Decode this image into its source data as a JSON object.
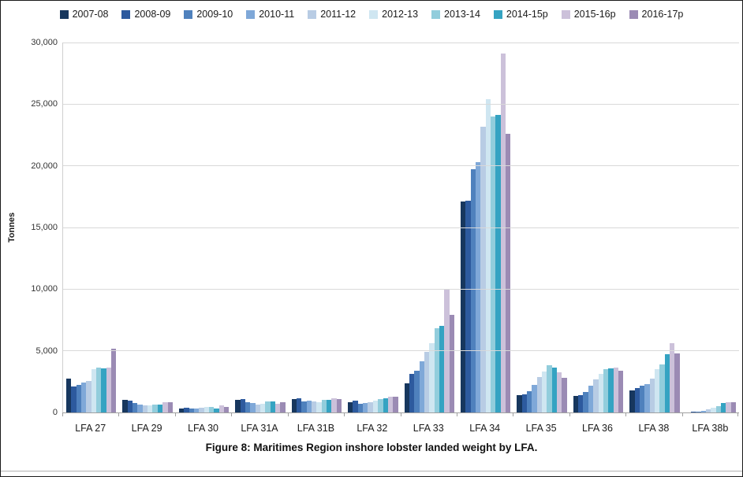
{
  "caption": "Figure 8: Maritimes Region inshore lobster landed weight by LFA.",
  "chart_data": {
    "type": "bar",
    "title": "",
    "xlabel": "",
    "ylabel": "Tonnes",
    "ylim": [
      0,
      30000
    ],
    "yticks": [
      0,
      5000,
      10000,
      15000,
      20000,
      25000,
      30000
    ],
    "ytick_labels": [
      "0",
      "5,000",
      "10,000",
      "15,000",
      "20,000",
      "25,000",
      "30,000"
    ],
    "grid": "horizontal",
    "legend_position": "top",
    "categories": [
      "LFA 27",
      "LFA 29",
      "LFA 30",
      "LFA 31A",
      "LFA 31B",
      "LFA 32",
      "LFA 33",
      "LFA 34",
      "LFA 35",
      "LFA 36",
      "LFA 38",
      "LFA 38b"
    ],
    "series": [
      {
        "name": "2007-08",
        "color": "#17375E",
        "values": [
          2750,
          1000,
          350,
          1000,
          1070,
          830,
          2350,
          17100,
          1400,
          1350,
          1800,
          20
        ]
      },
      {
        "name": "2008-09",
        "color": "#2D5A9E",
        "values": [
          2100,
          950,
          400,
          1100,
          1170,
          940,
          3150,
          17150,
          1450,
          1400,
          2000,
          40
        ]
      },
      {
        "name": "2009-10",
        "color": "#4F81BD",
        "values": [
          2250,
          750,
          300,
          830,
          890,
          720,
          3400,
          19700,
          1750,
          1650,
          2150,
          70
        ]
      },
      {
        "name": "2010-11",
        "color": "#7FA8D8",
        "values": [
          2450,
          650,
          350,
          770,
          980,
          770,
          4150,
          20300,
          2250,
          2150,
          2300,
          150
        ]
      },
      {
        "name": "2011-12",
        "color": "#B8CCE4",
        "values": [
          2550,
          600,
          400,
          620,
          890,
          830,
          4900,
          23200,
          2850,
          2650,
          2750,
          230
        ]
      },
      {
        "name": "2012-13",
        "color": "#CFE6F1",
        "values": [
          3500,
          550,
          450,
          680,
          810,
          980,
          5600,
          25400,
          3300,
          3100,
          3500,
          360
        ]
      },
      {
        "name": "2013-14",
        "color": "#92CDDC",
        "values": [
          3650,
          650,
          430,
          890,
          1020,
          1090,
          6800,
          24000,
          3800,
          3500,
          3900,
          510
        ]
      },
      {
        "name": "2014-15p",
        "color": "#35A3C2",
        "values": [
          3600,
          650,
          350,
          890,
          1020,
          1150,
          7000,
          24100,
          3650,
          3550,
          4700,
          770
        ]
      },
      {
        "name": "2015-16p",
        "color": "#CCC1DA",
        "values": [
          3650,
          850,
          550,
          720,
          1170,
          1250,
          10000,
          29100,
          3250,
          3650,
          5600,
          800
        ]
      },
      {
        "name": "2016-17p",
        "color": "#9B8BB4",
        "values": [
          5200,
          800,
          450,
          830,
          1100,
          1250,
          7900,
          22600,
          2800,
          3400,
          4800,
          830
        ]
      }
    ]
  }
}
